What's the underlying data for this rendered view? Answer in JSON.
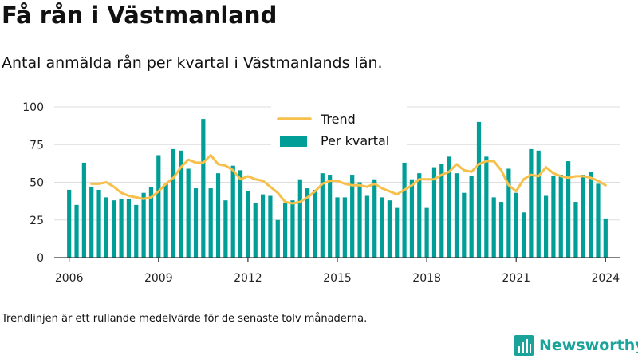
{
  "header": {
    "title": "Få rån i Västmanland",
    "subtitle": "Antal anmälda rån per kvartal i Västmanlands län."
  },
  "footer": {
    "note": "Trendlinjen är ett rullande medelvärde för de senaste tolv månaderna.",
    "brand": "Newsworthy"
  },
  "colors": {
    "bar": "#009e96",
    "trend": "#f7c04a",
    "grid": "#dddddd",
    "brand": "#1aa39a"
  },
  "icons": {
    "brand_logo": "bar-chart-logo-icon"
  },
  "chart_data": {
    "type": "bar",
    "xlabel": "",
    "ylabel": "",
    "ylim": [
      0,
      100
    ],
    "yticks": [
      0,
      25,
      50,
      75,
      100
    ],
    "xlim": [
      2005.5,
      2024.5
    ],
    "xticks": [
      2006,
      2009,
      2012,
      2015,
      2018,
      2021,
      2024
    ],
    "grid": true,
    "legend_position": "top-center",
    "series": [
      {
        "name": "Per kvartal",
        "kind": "bar",
        "x": [
          2006.0,
          2006.25,
          2006.5,
          2006.75,
          2007.0,
          2007.25,
          2007.5,
          2007.75,
          2008.0,
          2008.25,
          2008.5,
          2008.75,
          2009.0,
          2009.25,
          2009.5,
          2009.75,
          2010.0,
          2010.25,
          2010.5,
          2010.75,
          2011.0,
          2011.25,
          2011.5,
          2011.75,
          2012.0,
          2012.25,
          2012.5,
          2012.75,
          2013.0,
          2013.25,
          2013.5,
          2013.75,
          2014.0,
          2014.25,
          2014.5,
          2014.75,
          2015.0,
          2015.25,
          2015.5,
          2015.75,
          2016.0,
          2016.25,
          2016.5,
          2016.75,
          2017.0,
          2017.25,
          2017.5,
          2017.75,
          2018.0,
          2018.25,
          2018.5,
          2018.75,
          2019.0,
          2019.25,
          2019.5,
          2019.75,
          2020.0,
          2020.25,
          2020.5,
          2020.75,
          2021.0,
          2021.25,
          2021.5,
          2021.75,
          2022.0,
          2022.25,
          2022.5,
          2022.75,
          2023.0,
          2023.25,
          2023.5,
          2023.75,
          2024.0
        ],
        "values": [
          45,
          35,
          63,
          47,
          45,
          40,
          38,
          39,
          39,
          35,
          43,
          47,
          68,
          49,
          72,
          71,
          59,
          46,
          92,
          46,
          56,
          38,
          61,
          58,
          44,
          36,
          42,
          41,
          25,
          36,
          38,
          52,
          46,
          45,
          56,
          55,
          40,
          40,
          55,
          50,
          41,
          52,
          40,
          38,
          33,
          63,
          52,
          56,
          33,
          60,
          62,
          67,
          56,
          43,
          54,
          90,
          67,
          40,
          37,
          59,
          43,
          30,
          72,
          71,
          41,
          54,
          55,
          64,
          37,
          55,
          57,
          49,
          26
        ]
      },
      {
        "name": "Trend",
        "kind": "line",
        "x": [
          2006.75,
          2007.0,
          2007.25,
          2007.5,
          2007.75,
          2008.0,
          2008.25,
          2008.5,
          2008.75,
          2009.0,
          2009.25,
          2009.5,
          2009.75,
          2010.0,
          2010.25,
          2010.5,
          2010.75,
          2011.0,
          2011.25,
          2011.5,
          2011.75,
          2012.0,
          2012.25,
          2012.5,
          2012.75,
          2013.0,
          2013.25,
          2013.5,
          2013.75,
          2014.0,
          2014.25,
          2014.5,
          2014.75,
          2015.0,
          2015.25,
          2015.5,
          2015.75,
          2016.0,
          2016.25,
          2016.5,
          2016.75,
          2017.0,
          2017.25,
          2017.5,
          2017.75,
          2018.0,
          2018.25,
          2018.5,
          2018.75,
          2019.0,
          2019.25,
          2019.5,
          2019.75,
          2020.0,
          2020.25,
          2020.5,
          2020.75,
          2021.0,
          2021.25,
          2021.5,
          2021.75,
          2022.0,
          2022.25,
          2022.5,
          2022.75,
          2023.0,
          2023.25,
          2023.5,
          2023.75,
          2024.0
        ],
        "values": [
          49,
          49,
          50,
          47,
          43,
          41,
          40,
          39,
          40,
          44,
          49,
          53,
          60,
          65,
          63,
          63,
          68,
          62,
          61,
          58,
          52,
          54,
          52,
          51,
          47,
          43,
          37,
          36,
          37,
          40,
          44,
          49,
          51,
          51,
          49,
          48,
          48,
          47,
          49,
          46,
          44,
          42,
          45,
          48,
          52,
          52,
          52,
          55,
          57,
          62,
          58,
          57,
          62,
          64,
          64,
          58,
          48,
          44,
          52,
          55,
          54,
          60,
          56,
          54,
          53,
          54,
          54,
          53,
          51,
          48
        ]
      }
    ]
  }
}
